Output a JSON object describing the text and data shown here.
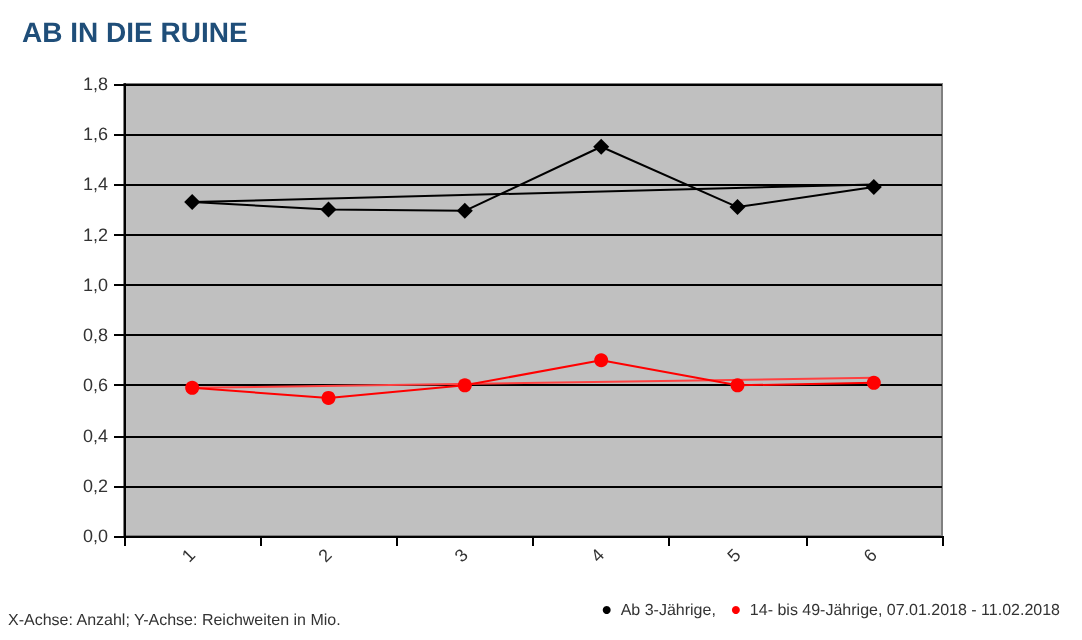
{
  "chart_data": {
    "type": "line",
    "title": "AB IN DIE RUINE",
    "categories": [
      "1",
      "2",
      "3",
      "4",
      "5",
      "6"
    ],
    "series": [
      {
        "name": "Ab 3-Jährige,",
        "color": "#000000",
        "marker": "diamond",
        "values": [
          1.33,
          1.3,
          1.295,
          1.55,
          1.31,
          1.39
        ]
      },
      {
        "name": "14- bis 49-Jährige, 07.01.2018 - 11.02.2018",
        "color": "#ff0000",
        "marker": "circle",
        "values": [
          0.59,
          0.55,
          0.6,
          0.7,
          0.6,
          0.61
        ]
      },
      {
        "color": "#000000",
        "marker": "none",
        "x": [
          "1",
          "6"
        ],
        "values": [
          1.33,
          1.4
        ]
      },
      {
        "color": "#ff4040",
        "marker": "none",
        "x": [
          "1",
          "6"
        ],
        "values": [
          0.59,
          0.63
        ]
      }
    ],
    "ylim": [
      0,
      1.8
    ],
    "yticks": [
      {
        "value": 0,
        "label": "0,0"
      },
      {
        "value": 0.2,
        "label": "0,2"
      },
      {
        "value": 0.4,
        "label": "0,4"
      },
      {
        "value": 0.6,
        "label": "0,6"
      },
      {
        "value": 0.8,
        "label": "0,8"
      },
      {
        "value": 1,
        "label": "1,0"
      },
      {
        "value": 1.2,
        "label": "1,2"
      },
      {
        "value": 1.4,
        "label": "1,4"
      },
      {
        "value": 1.6,
        "label": "1,6"
      },
      {
        "value": 1.8,
        "label": "1,8"
      }
    ],
    "grid": "y",
    "legend": "bottom right",
    "annotations": [
      "X-Achse: Anzahl; Y-Achse: Reichweiten in Mio."
    ]
  }
}
